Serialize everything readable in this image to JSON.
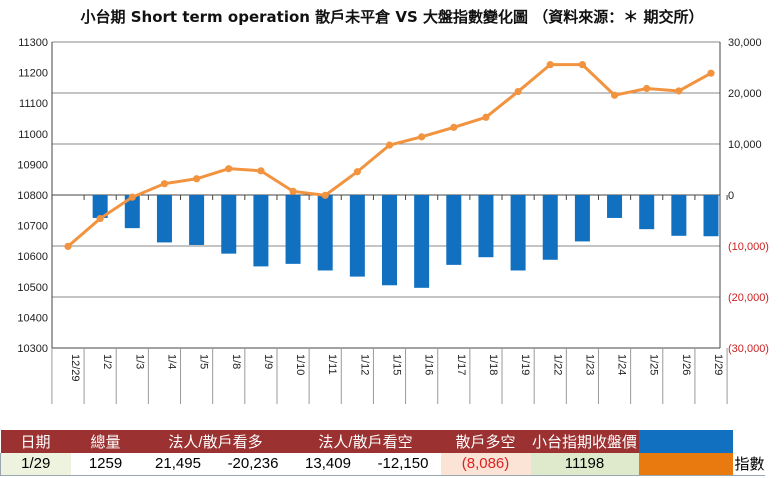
{
  "title": "小台期 Short term operation  散戶未平倉 VS 大盤指數變化圖 （資料來源：＊ 期交所）",
  "chart_data": {
    "type": "bar+line",
    "categories": [
      "12/29",
      "1/2",
      "1/3",
      "1/4",
      "1/5",
      "1/8",
      "1/9",
      "1/10",
      "1/11",
      "1/12",
      "1/15",
      "1/16",
      "1/17",
      "1/18",
      "1/19",
      "1/22",
      "1/23",
      "1/24",
      "1/25",
      "1/26",
      "1/29"
    ],
    "series": [
      {
        "name": "散戶",
        "type": "bar",
        "axis": "right",
        "color": "#1170c0",
        "values": [
          null,
          -4500,
          -6500,
          -9300,
          -9800,
          -11500,
          -14000,
          -13500,
          -14800,
          -16000,
          -17700,
          -18200,
          -13700,
          -12200,
          -14800,
          -12700,
          -9100,
          -4500,
          -6700,
          -8000,
          -8086
        ]
      },
      {
        "name": "指數",
        "type": "line",
        "axis": "left",
        "color": "#f1933f",
        "values": [
          10632,
          10723,
          10793,
          10837,
          10853,
          10886,
          10879,
          10812,
          10799,
          10876,
          10963,
          10990,
          11021,
          11054,
          11138,
          11226,
          11226,
          11126,
          11148,
          11140,
          11198
        ]
      }
    ],
    "left_axis": {
      "min": 10300,
      "max": 11300,
      "ticks": [
        "10300",
        "10400",
        "10500",
        "10600",
        "10700",
        "10800",
        "10900",
        "11000",
        "11100",
        "11200",
        "11300"
      ]
    },
    "right_axis": {
      "min": -30000,
      "max": 30000,
      "ticks": [
        "(30,000)",
        "(20,000)",
        "(10,000)",
        "0",
        "10,000",
        "20,000",
        "30,000"
      ]
    },
    "colors": {
      "axis_text": "#222222",
      "negative_tick": "#cc2222",
      "grid": "#888888"
    }
  },
  "table": {
    "headers": [
      "日期",
      "總量",
      "法人/散戶看多",
      "",
      "法人/散戶看空",
      "",
      "散戶多空",
      "小台指期收盤價"
    ],
    "row": [
      "1/29",
      "1259",
      "21,495",
      "-20,236",
      "13,409",
      "-12,150",
      "(8,086)",
      "11198"
    ],
    "legend": [
      {
        "label": "散戶",
        "color": "#1170c0"
      },
      {
        "label": "指數",
        "color": "#e87a10"
      }
    ]
  }
}
